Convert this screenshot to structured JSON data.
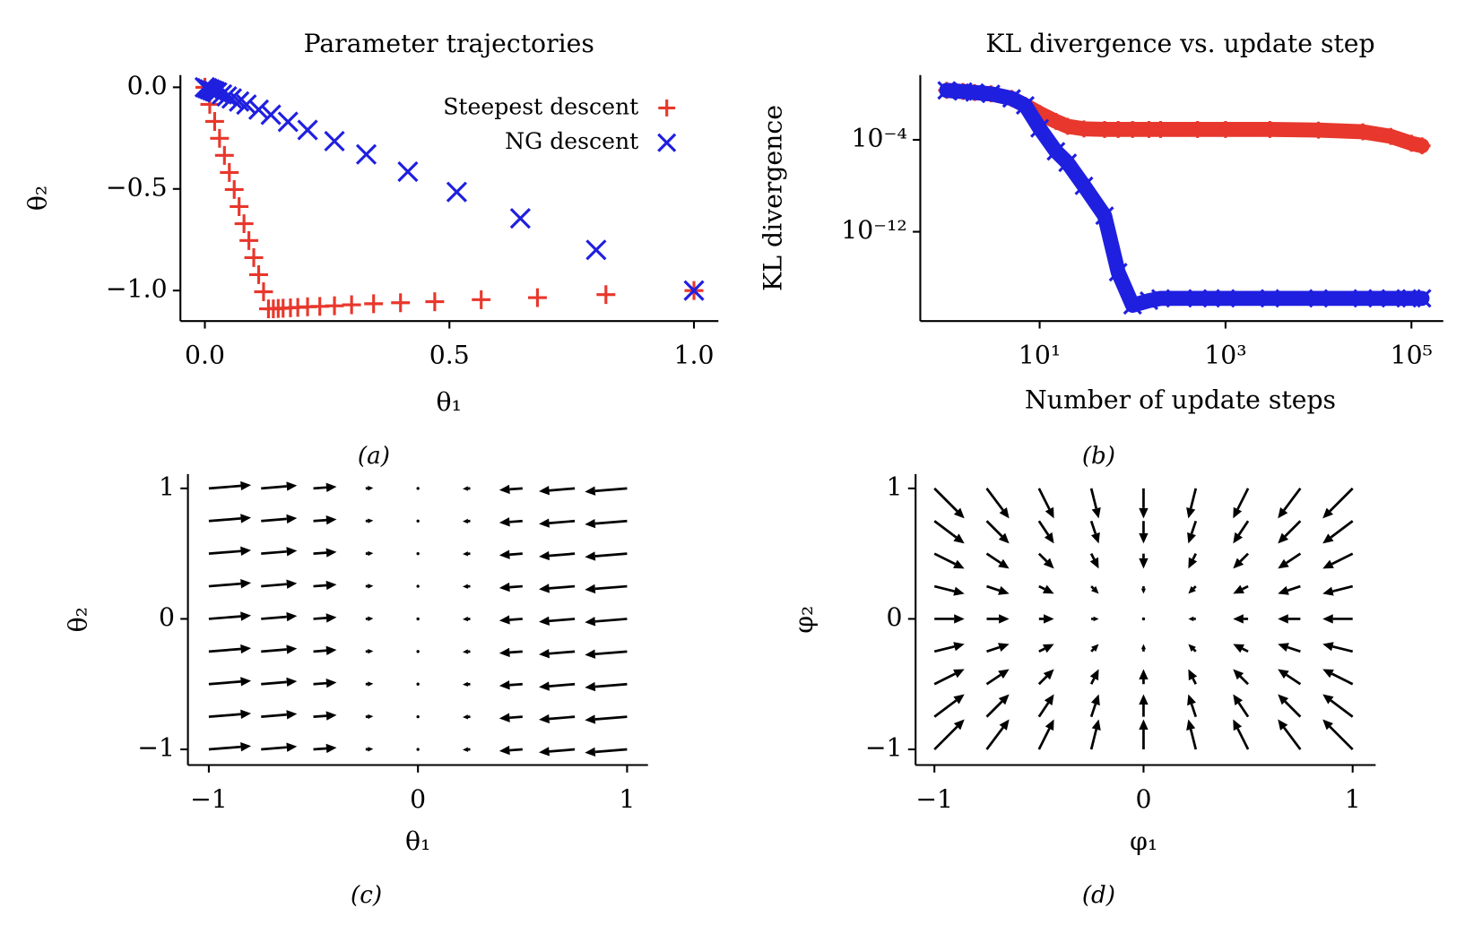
{
  "chart_data": [
    {
      "type": "scatter",
      "title": "Parameter trajectories",
      "xlabel": "θ₁",
      "ylabel": "θ₂",
      "caption": "(a)",
      "xlim": [
        -0.05,
        1.05
      ],
      "ylim": [
        -1.15,
        0.06
      ],
      "xticks": [
        {
          "value": 0,
          "label": "0.0"
        },
        0.5,
        {
          "value": 1,
          "label": "1.0"
        }
      ],
      "yticks": [
        {
          "value": 0,
          "label": "0.0"
        },
        {
          "value": -0.5,
          "label": "−0.5"
        },
        {
          "value": -1,
          "label": "−1.0"
        }
      ],
      "legend": "upper right",
      "series": [
        {
          "name": "Steepest descent",
          "color": "#e8372c",
          "marker": "+",
          "x": [
            1.0,
            0.82,
            0.68,
            0.565,
            0.47,
            0.4,
            0.345,
            0.3,
            0.265,
            0.235,
            0.21,
            0.19,
            0.175,
            0.16,
            0.15,
            0.14,
            0.13,
            0.12,
            0.11,
            0.1,
            0.09,
            0.08,
            0.07,
            0.06,
            0.05,
            0.04,
            0.03,
            0.02,
            0.01,
            0.0
          ],
          "values": [
            -1.0,
            -1.02,
            -1.035,
            -1.045,
            -1.055,
            -1.06,
            -1.065,
            -1.07,
            -1.075,
            -1.078,
            -1.08,
            -1.083,
            -1.085,
            -1.087,
            -1.088,
            -1.09,
            -1.09,
            -1.006,
            -0.922,
            -0.838,
            -0.754,
            -0.671,
            -0.587,
            -0.503,
            -0.419,
            -0.335,
            -0.251,
            -0.168,
            -0.084,
            0.0
          ]
        },
        {
          "name": "NG descent",
          "color": "#1f1fe0",
          "marker": "x",
          "x": [
            1.0,
            0.8,
            0.645,
            0.515,
            0.415,
            0.33,
            0.265,
            0.21,
            0.17,
            0.135,
            0.11,
            0.085,
            0.07,
            0.055,
            0.045,
            0.035,
            0.025,
            0.02,
            0.015,
            0.01,
            0.005,
            0.0
          ],
          "values": [
            -1.0,
            -0.8,
            -0.645,
            -0.515,
            -0.415,
            -0.33,
            -0.265,
            -0.21,
            -0.17,
            -0.135,
            -0.11,
            -0.085,
            -0.07,
            -0.055,
            -0.045,
            -0.035,
            -0.025,
            -0.02,
            -0.015,
            -0.01,
            -0.005,
            0.0
          ]
        }
      ]
    },
    {
      "type": "line",
      "title": "KL divergence vs. update step",
      "xlabel": "Number of update steps",
      "ylabel": "KL divergence",
      "caption": "(b)",
      "xlog": true,
      "ylog": true,
      "xlim": [
        0.52,
        220000
      ],
      "ylim": [
        1.7e-20,
        43
      ],
      "xticks": [
        {
          "value": 10,
          "label": "10¹"
        },
        {
          "value": 1000,
          "label": "10³"
        },
        {
          "value": 100000,
          "label": "10⁵"
        }
      ],
      "yticks": [
        {
          "value": 0.0001,
          "label": "10⁻⁴"
        },
        {
          "value": 1e-12,
          "label": "10⁻¹²"
        }
      ],
      "x": [
        1,
        1.5,
        2,
        3,
        5,
        7,
        10,
        15,
        20,
        30,
        50,
        70,
        100,
        150,
        200,
        500,
        1000,
        3000,
        10000,
        30000,
        60000,
        100000,
        130000
      ],
      "series": [
        {
          "name": "Steepest descent",
          "color": "#e8372c",
          "marker": "+",
          "values": [
            2,
            1.6,
            1.3,
            1,
            0.4,
            0.1,
            0.02,
            0.004,
            0.0015,
            0.0009,
            0.0008,
            0.0008,
            0.0008,
            0.0008,
            0.0008,
            0.0008,
            0.0008,
            0.0008,
            0.0007,
            0.0005,
            0.0002,
            5e-05,
            3e-05
          ]
        },
        {
          "name": "NG descent",
          "color": "#1f1fe0",
          "marker": "x",
          "values": [
            2,
            1.6,
            1.3,
            1,
            0.4,
            0.1,
            0.001,
            1e-05,
            1e-06,
            1e-08,
            2.5e-11,
            3e-16,
            4e-19,
            1e-18,
            1.6e-18,
            1.6e-18,
            1.6e-18,
            1.6e-18,
            1.6e-18,
            1.6e-18,
            1.6e-18,
            1.6e-18,
            1.6e-18
          ]
        }
      ]
    },
    {
      "type": "quiver",
      "xlabel": "θ₁",
      "ylabel": "θ₂",
      "caption": "(c)",
      "color": "#000000",
      "xlim": [
        -1.1,
        1.1
      ],
      "ylim": [
        -1.12,
        1.11
      ],
      "xticks": [
        {
          "value": -1,
          "label": "−1"
        },
        0,
        1
      ],
      "yticks": [
        {
          "value": -1,
          "label": "−1"
        },
        0,
        1
      ],
      "x": [
        -1,
        -0.75,
        -0.5,
        -0.25,
        0,
        0.25,
        0.5,
        0.75,
        1
      ],
      "y": [
        -1,
        -0.75,
        -0.5,
        -0.25,
        0,
        0.25,
        0.5,
        0.75,
        1
      ],
      "u": [
        [
          1,
          0.85,
          0.55,
          0.18,
          0,
          -0.18,
          -0.55,
          -0.85,
          -1
        ],
        [
          1,
          0.85,
          0.55,
          0.18,
          0,
          -0.18,
          -0.55,
          -0.85,
          -1
        ],
        [
          1,
          0.85,
          0.55,
          0.18,
          0,
          -0.18,
          -0.55,
          -0.85,
          -1
        ],
        [
          1,
          0.85,
          0.55,
          0.18,
          0,
          -0.18,
          -0.55,
          -0.85,
          -1
        ],
        [
          1,
          0.85,
          0.55,
          0.18,
          0,
          -0.18,
          -0.55,
          -0.85,
          -1
        ],
        [
          1,
          0.85,
          0.55,
          0.18,
          0,
          -0.18,
          -0.55,
          -0.85,
          -1
        ],
        [
          1,
          0.85,
          0.55,
          0.18,
          0,
          -0.18,
          -0.55,
          -0.85,
          -1
        ],
        [
          1,
          0.85,
          0.55,
          0.18,
          0,
          -0.18,
          -0.55,
          -0.85,
          -1
        ],
        [
          1,
          0.85,
          0.55,
          0.18,
          0,
          -0.18,
          -0.55,
          -0.85,
          -1
        ]
      ],
      "v": [
        [
          0.08,
          0.07,
          0.04,
          0.01,
          0,
          -0.01,
          -0.04,
          -0.07,
          -0.08
        ],
        [
          0.08,
          0.07,
          0.04,
          0.01,
          0,
          -0.01,
          -0.04,
          -0.07,
          -0.08
        ],
        [
          0.08,
          0.07,
          0.04,
          0.01,
          0,
          -0.01,
          -0.04,
          -0.07,
          -0.08
        ],
        [
          0.08,
          0.07,
          0.04,
          0.01,
          0,
          -0.01,
          -0.04,
          -0.07,
          -0.08
        ],
        [
          0.08,
          0.07,
          0.04,
          0.01,
          0,
          -0.01,
          -0.04,
          -0.07,
          -0.08
        ],
        [
          0.08,
          0.07,
          0.04,
          0.01,
          0,
          -0.01,
          -0.04,
          -0.07,
          -0.08
        ],
        [
          0.08,
          0.07,
          0.04,
          0.01,
          0,
          -0.01,
          -0.04,
          -0.07,
          -0.08
        ],
        [
          0.08,
          0.07,
          0.04,
          0.01,
          0,
          -0.01,
          -0.04,
          -0.07,
          -0.08
        ],
        [
          0.08,
          0.07,
          0.04,
          0.01,
          0,
          -0.01,
          -0.04,
          -0.07,
          -0.08
        ]
      ]
    },
    {
      "type": "quiver",
      "xlabel": "φ₁",
      "ylabel": "φ₂",
      "caption": "(d)",
      "color": "#000000",
      "xlim": [
        -1.09,
        1.11
      ],
      "ylim": [
        -1.12,
        1.11
      ],
      "xticks": [
        {
          "value": -1,
          "label": "−1"
        },
        0,
        1
      ],
      "yticks": [
        {
          "value": -1,
          "label": "−1"
        },
        0,
        1
      ],
      "x": [
        -1,
        -0.75,
        -0.5,
        -0.25,
        0,
        0.25,
        0.5,
        0.75,
        1
      ],
      "y": [
        -1,
        -0.75,
        -0.5,
        -0.25,
        0,
        0.25,
        0.5,
        0.75,
        1
      ],
      "u": [
        [
          1,
          0.75,
          0.5,
          0.25,
          0,
          -0.25,
          -0.5,
          -0.75,
          -1
        ],
        [
          1,
          0.75,
          0.5,
          0.25,
          0,
          -0.25,
          -0.5,
          -0.75,
          -1
        ],
        [
          1,
          0.75,
          0.5,
          0.25,
          0,
          -0.25,
          -0.5,
          -0.75,
          -1
        ],
        [
          1,
          0.75,
          0.5,
          0.25,
          0,
          -0.25,
          -0.5,
          -0.75,
          -1
        ],
        [
          1,
          0.75,
          0.5,
          0.25,
          0,
          -0.25,
          -0.5,
          -0.75,
          -1
        ],
        [
          1,
          0.75,
          0.5,
          0.25,
          0,
          -0.25,
          -0.5,
          -0.75,
          -1
        ],
        [
          1,
          0.75,
          0.5,
          0.25,
          0,
          -0.25,
          -0.5,
          -0.75,
          -1
        ],
        [
          1,
          0.75,
          0.5,
          0.25,
          0,
          -0.25,
          -0.5,
          -0.75,
          -1
        ],
        [
          1,
          0.75,
          0.5,
          0.25,
          0,
          -0.25,
          -0.5,
          -0.75,
          -1
        ]
      ],
      "v": [
        [
          1,
          1,
          1,
          1,
          1,
          1,
          1,
          1,
          1
        ],
        [
          0.75,
          0.75,
          0.75,
          0.75,
          0.75,
          0.75,
          0.75,
          0.75,
          0.75
        ],
        [
          0.5,
          0.5,
          0.5,
          0.5,
          0.5,
          0.5,
          0.5,
          0.5,
          0.5
        ],
        [
          0.25,
          0.25,
          0.25,
          0.25,
          0.25,
          0.25,
          0.25,
          0.25,
          0.25
        ],
        [
          0,
          0,
          0,
          0,
          0,
          0,
          0,
          0,
          0
        ],
        [
          -0.25,
          -0.25,
          -0.25,
          -0.25,
          -0.25,
          -0.25,
          -0.25,
          -0.25,
          -0.25
        ],
        [
          -0.5,
          -0.5,
          -0.5,
          -0.5,
          -0.5,
          -0.5,
          -0.5,
          -0.5,
          -0.5
        ],
        [
          -0.75,
          -0.75,
          -0.75,
          -0.75,
          -0.75,
          -0.75,
          -0.75,
          -0.75,
          -0.75
        ],
        [
          -1,
          -1,
          -1,
          -1,
          -1,
          -1,
          -1,
          -1,
          -1
        ]
      ]
    }
  ]
}
